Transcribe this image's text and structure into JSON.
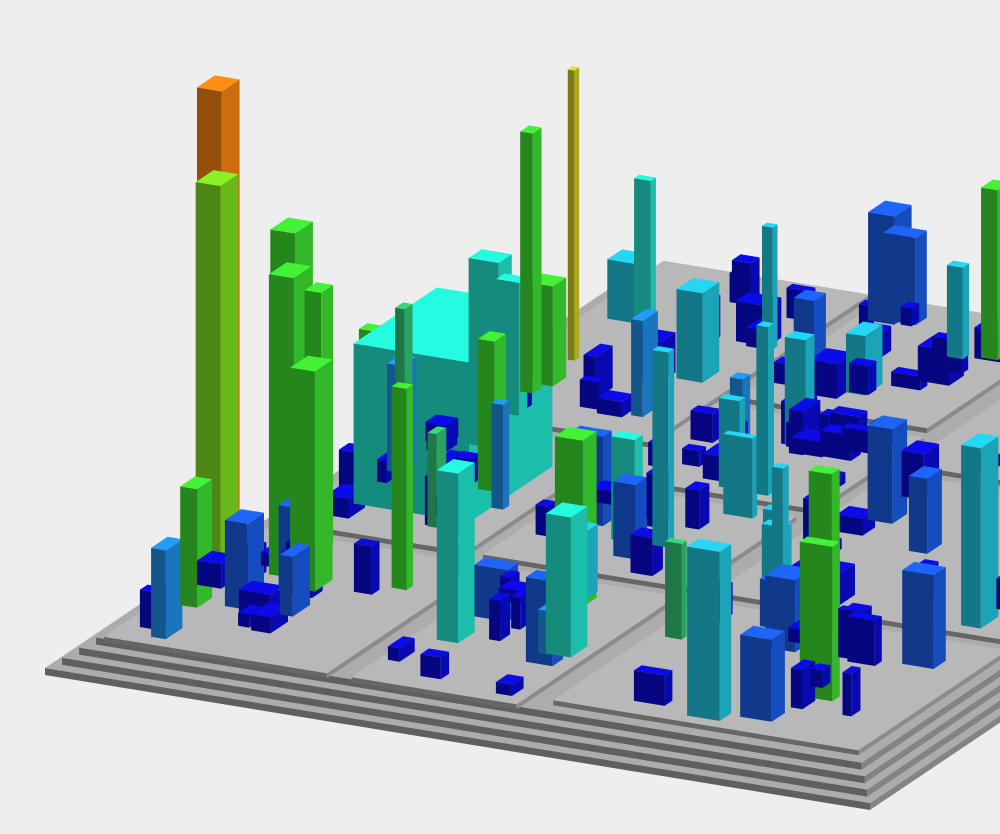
{
  "view": {
    "kind": "3D software city / treemap visualization",
    "background": "#eeeeee"
  },
  "palette": {
    "plate_top": "#9a9a9a",
    "plate_left": "#c8c8c8",
    "plate_right": "#7c7c7c",
    "platform_top": "#a4a4a4",
    "platform_side": "#d2d2d2",
    "building_scale": [
      "#0a0ad0",
      "#1a5ae0",
      "#1e8ae0",
      "#20c0d8",
      "#20e0c8",
      "#30c070",
      "#3cd830",
      "#7ad820",
      "#c8c820",
      "#e8a020",
      "#f08010"
    ]
  }
}
